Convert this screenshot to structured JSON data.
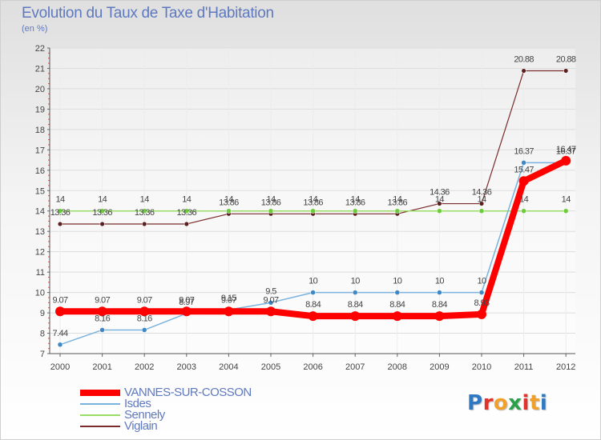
{
  "header": {
    "title": "Evolution du Taux de Taxe d'Habitation",
    "subtitle": "(en %)"
  },
  "logo": {
    "text": "Proxiti",
    "letter_colors": [
      "#2f78c4",
      "#e0342a",
      "#f1a12a",
      "#2aa24a",
      "#e0342a",
      "#f1a12a",
      "#2f78c4"
    ]
  },
  "chart_data": {
    "type": "line",
    "x": [
      "2000",
      "2001",
      "2002",
      "2003",
      "2004",
      "2005",
      "2006",
      "2007",
      "2008",
      "2009",
      "2010",
      "2011",
      "2012"
    ],
    "ylim": [
      7,
      22
    ],
    "yticks": [
      7,
      8,
      9,
      10,
      11,
      12,
      13,
      14,
      15,
      16,
      17,
      18,
      19,
      20,
      21,
      22
    ],
    "title": "Evolution du Taux de Taxe d'Habitation",
    "ylabel": "(en %)",
    "xlabel": "",
    "grid": "horizontal",
    "legend_position": "bottom-left",
    "series": [
      {
        "name": "VANNES-SUR-COSSON",
        "color": "#ff0000",
        "values": [
          9.07,
          9.07,
          9.07,
          9.07,
          9.07,
          9.07,
          8.84,
          8.84,
          8.84,
          8.84,
          8.93,
          15.47,
          16.47
        ],
        "labels": [
          "9.07",
          "9.07",
          "9.07",
          "9.07",
          "9.07",
          "9.07",
          "8.84",
          "8.84",
          "8.84",
          "8.84",
          "8.93",
          "15.47",
          "16.47"
        ]
      },
      {
        "name": "Isdes",
        "color": "#7ab3dd",
        "values": [
          7.44,
          8.16,
          8.16,
          8.97,
          9.15,
          9.5,
          10,
          10,
          10,
          10,
          10,
          16.37,
          16.37
        ],
        "labels": [
          "7.44",
          "8.16",
          "8.16",
          "8.97",
          "9.15",
          "9.5",
          "10",
          "10",
          "10",
          "10",
          "10",
          "16.37",
          "16.37"
        ]
      },
      {
        "name": "Sennely",
        "color": "#99dd66",
        "values": [
          14,
          14,
          14,
          14,
          14,
          14,
          14,
          14,
          14,
          14,
          14,
          14,
          14
        ],
        "labels": [
          "14",
          "14",
          "14",
          "14",
          "14",
          "14",
          "14",
          "14",
          "14",
          "14",
          "14",
          "14",
          "14"
        ]
      },
      {
        "name": "Viglain",
        "color": "#7a2c2c",
        "values": [
          13.36,
          13.36,
          13.36,
          13.36,
          13.86,
          13.86,
          13.86,
          13.86,
          13.86,
          14.36,
          14.36,
          20.88,
          20.88
        ],
        "labels": [
          "13.36",
          "13.36",
          "13.36",
          "13.36",
          "13.86",
          "13.86",
          "13.86",
          "13.86",
          "13.86",
          "14.36",
          "14.36",
          "20.88",
          "20.88"
        ]
      }
    ]
  }
}
